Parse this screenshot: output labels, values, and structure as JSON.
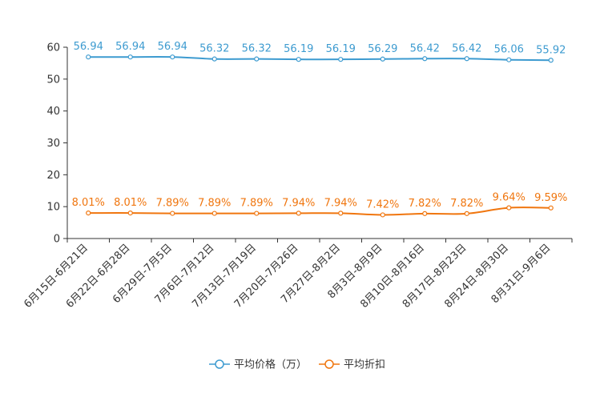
{
  "chart_data": {
    "type": "line",
    "title": "",
    "xlabel": "",
    "ylabel": "",
    "ylim": [
      0,
      60
    ],
    "yticks": [
      0,
      10,
      20,
      30,
      40,
      50,
      60
    ],
    "grid": false,
    "legend_position": "bottom",
    "categories": [
      "6月15日-6月21日",
      "6月22日-6月28日",
      "6月29日-7月5日",
      "7月6日-7月12日",
      "7月13日-7月19日",
      "7月20日-7月26日",
      "7月27日-8月2日",
      "8月3日-8月9日",
      "8月10日-8月16日",
      "8月17日-8月23日",
      "8月24日-8月30日",
      "8月31日-9月6日"
    ],
    "series": [
      {
        "name": "平均价格（万）",
        "color": "#3d9bd0",
        "values": [
          56.94,
          56.94,
          56.94,
          56.32,
          56.32,
          56.19,
          56.19,
          56.29,
          56.42,
          56.42,
          56.06,
          55.92
        ],
        "labels": [
          "56.94",
          "56.94",
          "56.94",
          "56.32",
          "56.32",
          "56.19",
          "56.19",
          "56.29",
          "56.42",
          "56.42",
          "56.06",
          "55.92"
        ]
      },
      {
        "name": "平均折扣",
        "color": "#f0760f",
        "values": [
          8.01,
          8.01,
          7.89,
          7.89,
          7.89,
          7.94,
          7.94,
          7.42,
          7.82,
          7.82,
          9.64,
          9.59
        ],
        "labels": [
          "8.01%",
          "8.01%",
          "7.89%",
          "7.89%",
          "7.89%",
          "7.94%",
          "7.94%",
          "7.42%",
          "7.82%",
          "7.82%",
          "9.64%",
          "9.59%"
        ]
      }
    ]
  }
}
